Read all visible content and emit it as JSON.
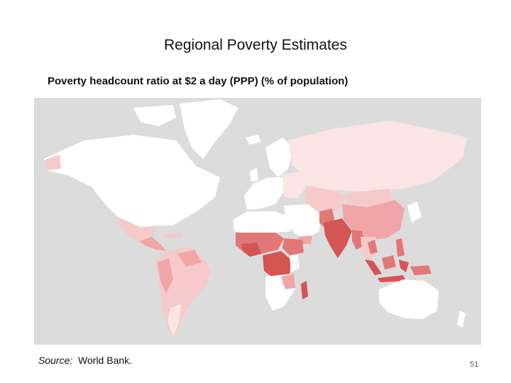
{
  "slide": {
    "title": "Regional Poverty Estimates",
    "subtitle": "Poverty headcount ratio at $2 a day (PPP) (% of population)",
    "source_label": "Source:",
    "source_text": "World Bank.",
    "page_number": "51"
  },
  "map": {
    "colors": {
      "ocean": "#dcdcdc",
      "land_no_data": "#ffffff",
      "very_low": "#fbe4e4",
      "low": "#f6caca",
      "medium": "#f0a6a6",
      "high": "#e27777",
      "very_high": "#d55454"
    }
  }
}
